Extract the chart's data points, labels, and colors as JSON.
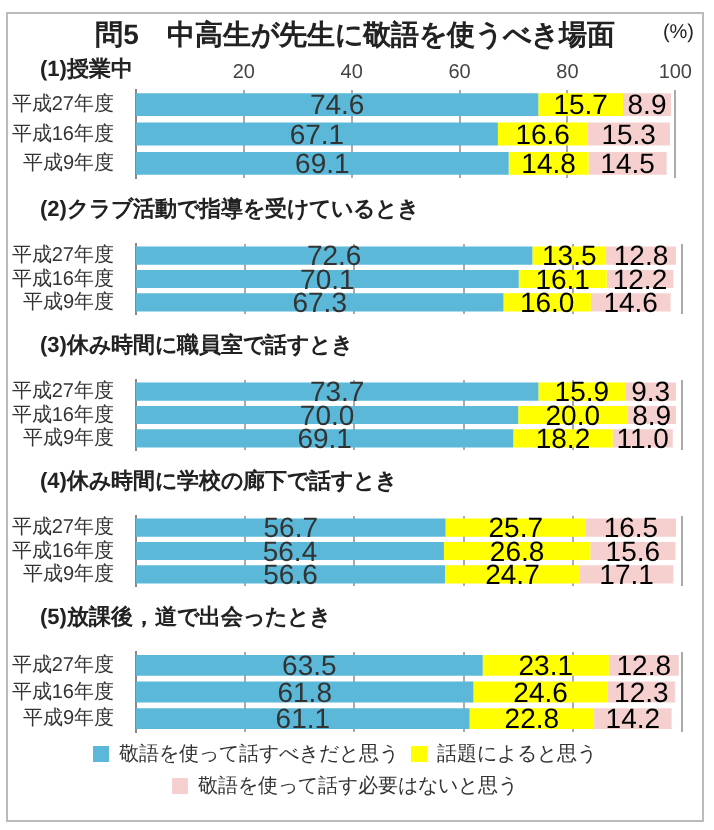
{
  "chart_data": [
    {
      "type": "bar",
      "orientation": "horizontal",
      "stacked": true,
      "title": "問5　中高生が先生に敬語を使うべき場面",
      "xlabel": "(%)",
      "subtitle": "(1)授業中",
      "categories": [
        "平成27年度",
        "平成16年度",
        "平成9年度"
      ],
      "series": [
        {
          "color": "#5bb8d8",
          "values": [
            74.6,
            67.1,
            69.1
          ],
          "value_labels": [
            "74.6",
            "67.1",
            "69.1"
          ]
        },
        {
          "color": "#ffff00",
          "values": [
            15.7,
            16.6,
            14.8
          ],
          "value_labels": [
            "15.7",
            "16.6",
            "14.8"
          ]
        },
        {
          "color": "#f6cfcf",
          "values": [
            8.9,
            15.3,
            14.5
          ],
          "value_labels": [
            "8.9",
            "15.3",
            "14.5"
          ]
        }
      ],
      "xlim": [
        0,
        100
      ],
      "xticks": [
        20,
        40,
        60,
        80,
        100
      ],
      "grid": "x"
    },
    {
      "type": "bar",
      "orientation": "horizontal",
      "stacked": true,
      "subtitle": "(2)クラブ活動で指導を受けているとき",
      "categories": [
        "平成27年度",
        "平成16年度",
        "平成9年度"
      ],
      "series": [
        {
          "color": "#5bb8d8",
          "values": [
            72.6,
            70.1,
            67.3
          ],
          "value_labels": [
            "72.6",
            "70.1",
            "67.3"
          ]
        },
        {
          "color": "#ffff00",
          "values": [
            13.5,
            16.1,
            16.0
          ],
          "value_labels": [
            "13.5",
            "16.1",
            "16.0"
          ]
        },
        {
          "color": "#f6cfcf",
          "values": [
            12.8,
            12.2,
            14.6
          ],
          "value_labels": [
            "12.8",
            "12.2",
            "14.6"
          ]
        }
      ],
      "xlim": [
        0,
        100
      ],
      "xticks": [
        20,
        40,
        60,
        80,
        100
      ],
      "grid": "x",
      "tick_labels": "y"
    },
    {
      "type": "bar",
      "orientation": "horizontal",
      "stacked": true,
      "subtitle": "(3)休み時間に職員室で話すとき",
      "categories": [
        "平成27年度",
        "平成16年度",
        "平成9年度"
      ],
      "series": [
        {
          "color": "#5bb8d8",
          "values": [
            73.7,
            70.0,
            69.1
          ],
          "value_labels": [
            "73.7",
            "70.0",
            "69.1"
          ]
        },
        {
          "color": "#ffff00",
          "values": [
            15.9,
            20.0,
            18.2
          ],
          "value_labels": [
            "15.9",
            "20.0",
            "18.2"
          ]
        },
        {
          "color": "#f6cfcf",
          "values": [
            9.3,
            8.9,
            11.0
          ],
          "value_labels": [
            "9.3",
            "8.9",
            "11.0"
          ]
        }
      ],
      "xlim": [
        0,
        100
      ],
      "xticks": [
        20,
        40,
        60,
        80,
        100
      ],
      "grid": "x",
      "tick_labels": "y"
    },
    {
      "type": "bar",
      "orientation": "horizontal",
      "stacked": true,
      "subtitle": "(4)休み時間に学校の廊下で話すとき",
      "categories": [
        "平成27年度",
        "平成16年度",
        "平成9年度"
      ],
      "series": [
        {
          "color": "#5bb8d8",
          "values": [
            56.7,
            56.4,
            56.6
          ],
          "value_labels": [
            "56.7",
            "56.4",
            "56.6"
          ]
        },
        {
          "color": "#ffff00",
          "values": [
            25.7,
            26.8,
            24.7
          ],
          "value_labels": [
            "25.7",
            "26.8",
            "24.7"
          ]
        },
        {
          "color": "#f6cfcf",
          "values": [
            16.5,
            15.6,
            17.1
          ],
          "value_labels": [
            "16.5",
            "15.6",
            "17.1"
          ]
        }
      ],
      "xlim": [
        0,
        100
      ],
      "xticks": [
        20,
        40,
        60,
        80,
        100
      ],
      "grid": "x",
      "tick_labels": "y"
    },
    {
      "type": "bar",
      "orientation": "horizontal",
      "stacked": true,
      "subtitle": "(5)放課後，道で出会ったとき",
      "categories": [
        "平成27年度",
        "平成16年度",
        "平成9年度"
      ],
      "series": [
        {
          "name": "敬語を使って話すべきだと思う",
          "color": "#5bb8d8",
          "values": [
            63.5,
            61.8,
            61.1
          ],
          "value_labels": [
            "63.5",
            "61.8",
            "61.1"
          ]
        },
        {
          "name": "話題によると思う",
          "color": "#ffff00",
          "values": [
            23.1,
            24.6,
            22.8
          ],
          "value_labels": [
            "23.1",
            "24.6",
            "22.8"
          ]
        },
        {
          "name": "敬語を使って話す必要はないと思う",
          "color": "#f6cfcf",
          "values": [
            12.8,
            12.3,
            14.2
          ],
          "value_labels": [
            "12.8",
            "12.3",
            "14.2"
          ]
        }
      ],
      "xlim": [
        0,
        100
      ],
      "xticks": [
        20,
        40,
        60,
        80,
        100
      ],
      "grid": "x",
      "tick_labels": "y",
      "legend": "bottom"
    }
  ]
}
